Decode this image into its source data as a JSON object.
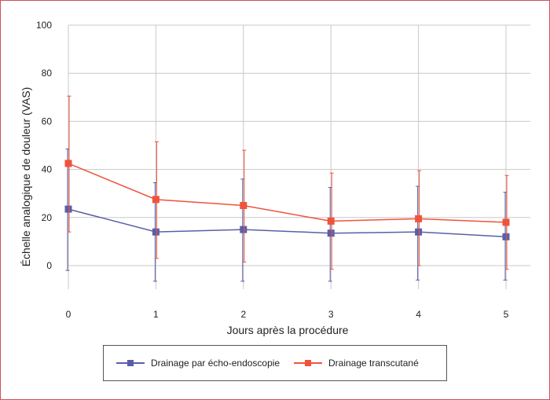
{
  "chart_data": {
    "type": "line",
    "title": "",
    "xlabel": "Jours après la procédure",
    "ylabel": "Échelle analogique de douleur (VAS)",
    "x": [
      0,
      1,
      2,
      3,
      4,
      5
    ],
    "x_tick_labels": [
      "0",
      "1",
      "2",
      "3",
      "4",
      "5"
    ],
    "y_tick_labels": [
      "0",
      "20",
      "40",
      "60",
      "80",
      "100"
    ],
    "xlim": [
      0,
      5
    ],
    "ylim": [
      -10,
      100
    ],
    "grid": "vertical and horizontal",
    "legend_position": "bottom",
    "series": [
      {
        "name": "Drainage par écho-endoscopie",
        "color": "#5b5ea6",
        "marker": "square",
        "values": [
          23.5,
          14,
          15,
          13.5,
          14,
          12
        ],
        "error_upper": [
          48.5,
          34.5,
          36,
          32.5,
          33,
          30.5
        ],
        "error_lower": [
          -2,
          -6.5,
          -6.5,
          -6.5,
          -6,
          -6
        ]
      },
      {
        "name": "Drainage transcutané",
        "color": "#f0533c",
        "marker": "square",
        "values": [
          42.5,
          27.5,
          25,
          18.5,
          19.5,
          18
        ],
        "error_upper": [
          70.5,
          51.5,
          48,
          38.5,
          39.5,
          37.5
        ],
        "error_lower": [
          14,
          3,
          1.5,
          -1.5,
          0,
          -1.5
        ]
      }
    ]
  }
}
